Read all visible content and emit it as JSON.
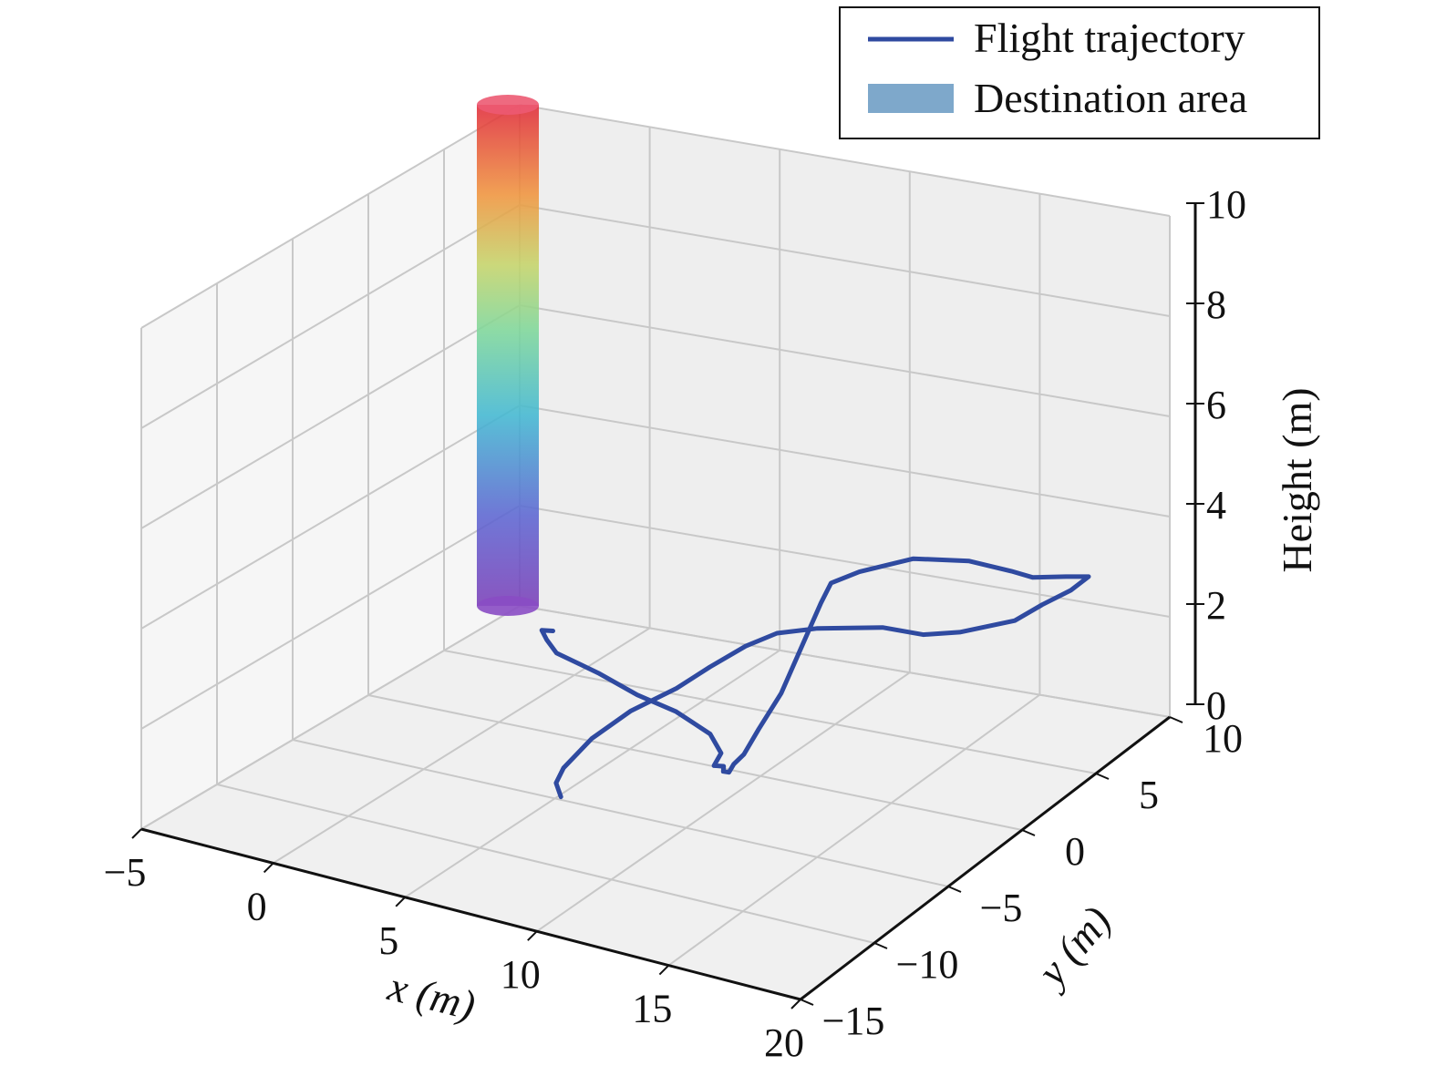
{
  "chart_data": {
    "type": "line3d",
    "xlabel": "x (m)",
    "ylabel": "y (m)",
    "zlabel": "Height (m)",
    "xlim": [
      -5,
      20
    ],
    "ylim": [
      -15,
      10
    ],
    "zlim": [
      0,
      10
    ],
    "xticks": [
      -5,
      0,
      5,
      10,
      15,
      20
    ],
    "xtick_labels": [
      "−5",
      "0",
      "5",
      "10",
      "15",
      "20"
    ],
    "yticks": [
      -15,
      -10,
      -5,
      0,
      5,
      10
    ],
    "ytick_labels": [
      "−15",
      "−10",
      "−5",
      "0",
      "5",
      "10"
    ],
    "zticks": [
      0,
      2,
      4,
      6,
      8,
      10
    ],
    "ztick_labels": [
      "0",
      "2",
      "4",
      "6",
      "8",
      "10"
    ],
    "grid": true,
    "legend_position": "top-right",
    "legend": [
      {
        "label": "Flight trajectory",
        "kind": "line",
        "color": "#2f4aa0"
      },
      {
        "label": "Destination area",
        "kind": "patch",
        "color": "#7ea8cb"
      }
    ],
    "destination_area": {
      "shape": "cylinder",
      "center_x": -5,
      "center_y": 10,
      "z_range": [
        0,
        10
      ],
      "colormap": "rainbow"
    },
    "series": [
      {
        "name": "Flight trajectory",
        "color": "#2f4aa0",
        "points": [
          [
            5.5,
            -6,
            3.6
          ],
          [
            4.5,
            -5,
            3.3
          ],
          [
            4.4,
            -4.5,
            3.0
          ],
          [
            4.6,
            -4.2,
            2.7
          ],
          [
            5.8,
            -3.5,
            2.3
          ],
          [
            7.0,
            -3.0,
            1.9
          ],
          [
            8.2,
            -2.5,
            1.6
          ],
          [
            9.5,
            -2.5,
            1.3
          ],
          [
            10.2,
            -3.0,
            1.1
          ],
          [
            10.1,
            -3.3,
            0.9
          ],
          [
            10.3,
            -3.0,
            0.85
          ],
          [
            10.4,
            -3.2,
            0.8
          ],
          [
            10.5,
            -3.0,
            0.75
          ],
          [
            10.4,
            -2.5,
            0.8
          ],
          [
            10.5,
            -2.0,
            0.9
          ],
          [
            10.5,
            -1.0,
            1.2
          ],
          [
            10.5,
            0.5,
            1.6
          ],
          [
            10.5,
            2.0,
            2.3
          ],
          [
            10.6,
            3.0,
            2.9
          ],
          [
            10.7,
            3.5,
            3.2
          ],
          [
            11.5,
            4.0,
            3.4
          ],
          [
            13.0,
            5.0,
            3.6
          ],
          [
            14.8,
            5.6,
            3.6
          ],
          [
            16.3,
            5.8,
            3.5
          ],
          [
            17.0,
            6.0,
            3.4
          ],
          [
            18.0,
            6.5,
            3.4
          ],
          [
            18.7,
            6.8,
            3.4
          ],
          [
            18.3,
            6.3,
            3.2
          ],
          [
            17.6,
            5.6,
            3.0
          ],
          [
            17.0,
            4.8,
            2.8
          ],
          [
            15.8,
            3.2,
            2.8
          ],
          [
            14.8,
            2.5,
            2.8
          ],
          [
            13.7,
            1.7,
            3.0
          ],
          [
            12.0,
            0.3,
            3.1
          ],
          [
            10.8,
            -0.3,
            3.0
          ],
          [
            10.0,
            -1.0,
            2.8
          ],
          [
            9.2,
            -2.0,
            2.5
          ],
          [
            8.5,
            -3.0,
            2.2
          ],
          [
            7.5,
            -4.3,
            1.9
          ],
          [
            6.7,
            -5.5,
            1.5
          ],
          [
            6.3,
            -6.7,
            1.1
          ],
          [
            6.3,
            -7.2,
            0.9
          ],
          [
            6.6,
            -7.4,
            0.7
          ]
        ]
      }
    ]
  }
}
